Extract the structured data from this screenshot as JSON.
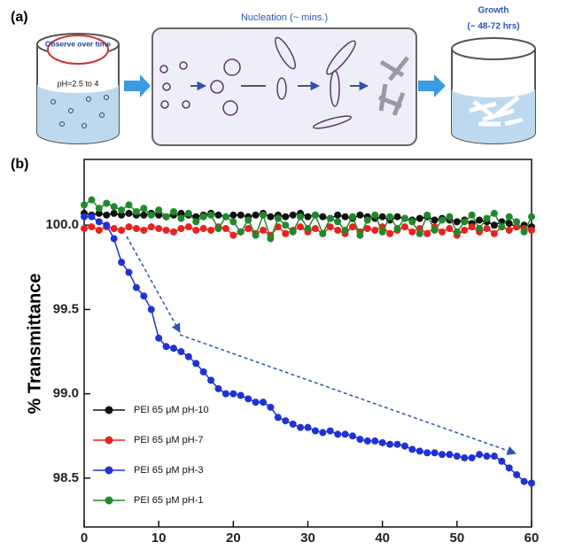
{
  "panel_a": {
    "label": "(a)",
    "observe": "Observe over time",
    "ph": "pH=2.5 to 4",
    "nucleation": "Nucleation  (~ mins.)",
    "growth": "Growth",
    "growth_time": "(~ 48-72 hrs)"
  },
  "chart_data": {
    "type": "line",
    "panel_label": "(b)",
    "ylabel": "% Transmittance",
    "x": [
      0,
      1,
      2,
      3,
      4,
      5,
      6,
      7,
      8,
      9,
      10,
      11,
      12,
      13,
      14,
      15,
      16,
      17,
      18,
      19,
      20,
      21,
      22,
      23,
      24,
      25,
      26,
      27,
      28,
      29,
      30,
      31,
      32,
      33,
      34,
      35,
      36,
      37,
      38,
      39,
      40,
      41,
      42,
      43,
      44,
      45,
      46,
      47,
      48,
      49,
      50,
      51,
      52,
      53,
      54,
      55,
      56,
      57,
      58,
      59,
      60
    ],
    "xlim": [
      0,
      60
    ],
    "xticks": [
      0,
      10,
      20,
      30,
      40,
      50,
      60
    ],
    "ylim": [
      98.21,
      100.39
    ],
    "yticks": [
      98.5,
      {
        "value": 99,
        "label": "99.0"
      },
      99.5,
      {
        "value": 100,
        "label": "100.0"
      }
    ],
    "legend": "lower left",
    "series": [
      {
        "name": "PEI 65 μM pH-10",
        "color": "#111111",
        "values": [
          100.07,
          100.06,
          100.07,
          100.06,
          100.07,
          100.06,
          100.07,
          100.06,
          100.06,
          100.07,
          100.06,
          100.05,
          100.06,
          100.07,
          100.06,
          100.05,
          100.06,
          100.07,
          100.06,
          100.05,
          100.06,
          100.06,
          100.05,
          100.06,
          100.07,
          100.05,
          100.06,
          100.05,
          100.06,
          100.07,
          100.05,
          100.06,
          100.05,
          100.04,
          100.06,
          100.05,
          100.04,
          100.06,
          100.05,
          100.04,
          100.05,
          100.03,
          100.05,
          100.04,
          100.03,
          100.04,
          100.05,
          100.03,
          100.04,
          100.03,
          100.02,
          100.03,
          100.01,
          100.03,
          100.02,
          100.0,
          100.02,
          100.01,
          99.99,
          100.0,
          99.99
        ]
      },
      {
        "name": "PEI 65 μM pH-7",
        "color": "#e8231e",
        "values": [
          99.98,
          99.99,
          99.97,
          99.99,
          99.98,
          99.97,
          99.99,
          99.98,
          99.97,
          99.99,
          99.98,
          99.97,
          99.96,
          99.98,
          99.99,
          99.97,
          99.98,
          99.97,
          99.99,
          99.98,
          99.94,
          99.96,
          99.98,
          99.95,
          99.97,
          99.94,
          99.99,
          99.95,
          99.97,
          99.99,
          99.96,
          99.98,
          99.95,
          99.99,
          99.97,
          99.95,
          99.99,
          99.96,
          99.98,
          99.97,
          99.99,
          99.95,
          99.97,
          99.99,
          99.96,
          99.98,
          99.95,
          99.99,
          99.96,
          99.98,
          99.94,
          99.97,
          99.99,
          99.96,
          99.98,
          99.95,
          99.99,
          99.97,
          99.99,
          99.98,
          99.97
        ]
      },
      {
        "name": "PEI 65 μM pH-3",
        "color": "#1f32d6",
        "values": [
          100.05,
          100.05,
          100.02,
          100.0,
          99.92,
          99.78,
          99.72,
          99.63,
          99.58,
          99.5,
          99.33,
          99.28,
          99.27,
          99.25,
          99.22,
          99.18,
          99.13,
          99.08,
          99.03,
          99.0,
          99.0,
          98.99,
          98.97,
          98.95,
          98.95,
          98.92,
          98.86,
          98.84,
          98.82,
          98.8,
          98.8,
          98.78,
          98.77,
          98.78,
          98.76,
          98.76,
          98.75,
          98.73,
          98.72,
          98.72,
          98.71,
          98.7,
          98.7,
          98.69,
          98.67,
          98.66,
          98.65,
          98.65,
          98.64,
          98.64,
          98.63,
          98.62,
          98.62,
          98.64,
          98.63,
          98.63,
          98.6,
          98.56,
          98.52,
          98.48,
          98.47
        ]
      },
      {
        "name": "PEI 65 μM pH-1",
        "color": "#1f8a2a",
        "values": [
          100.12,
          100.15,
          100.1,
          100.13,
          100.11,
          100.09,
          100.12,
          100.08,
          100.1,
          100.06,
          100.09,
          100.05,
          100.08,
          100.04,
          100.07,
          100.02,
          100.05,
          100.06,
          99.98,
          100.05,
          100.02,
          99.96,
          100.03,
          99.94,
          100.06,
          99.92,
          100.04,
          100.0,
          99.96,
          100.05,
          99.98,
          100.06,
          99.95,
          100.04,
          100.02,
          99.97,
          100.05,
          99.94,
          100.03,
          100.06,
          99.96,
          100.05,
          99.98,
          100.04,
          100.02,
          99.95,
          100.06,
          99.97,
          100.03,
          100.05,
          99.96,
          100.02,
          100.06,
          99.98,
          100.04,
          100.07,
          99.99,
          100.05,
          100.02,
          99.96,
          100.05
        ]
      }
    ]
  }
}
